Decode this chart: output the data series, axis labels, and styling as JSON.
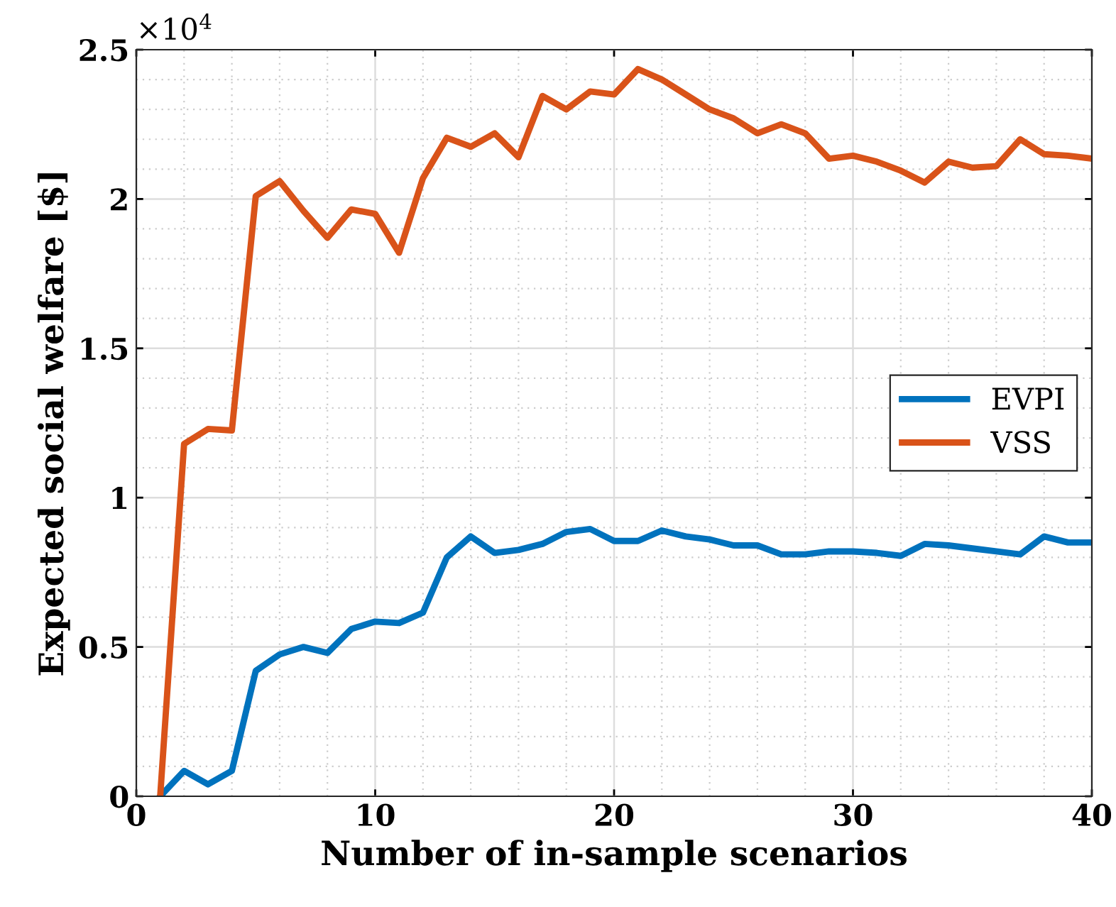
{
  "chart_data": {
    "type": "line",
    "xlabel": "Number of in-sample scenarios",
    "ylabel": "Expected social welfare [$]",
    "x": [
      1,
      2,
      3,
      4,
      5,
      6,
      7,
      8,
      9,
      10,
      11,
      12,
      13,
      14,
      15,
      16,
      17,
      18,
      19,
      20,
      21,
      22,
      23,
      24,
      25,
      26,
      27,
      28,
      29,
      30,
      31,
      32,
      33,
      34,
      35,
      36,
      37,
      38,
      39,
      40
    ],
    "series": [
      {
        "name": "EVPI",
        "color": "#0072bd",
        "values": [
          0,
          0.085,
          0.04,
          0.085,
          0.42,
          0.475,
          0.5,
          0.48,
          0.56,
          0.585,
          0.58,
          0.615,
          0.8,
          0.87,
          0.815,
          0.825,
          0.845,
          0.885,
          0.895,
          0.855,
          0.855,
          0.89,
          0.87,
          0.86,
          0.84,
          0.84,
          0.81,
          0.81,
          0.82,
          0.82,
          0.815,
          0.805,
          0.845,
          0.84,
          0.83,
          0.82,
          0.81,
          0.87,
          0.85,
          0.85
        ]
      },
      {
        "name": "VSS",
        "color": "#d95319",
        "values": [
          0,
          1.18,
          1.23,
          1.225,
          2.01,
          2.06,
          1.96,
          1.87,
          1.965,
          1.95,
          1.82,
          2.07,
          2.205,
          2.175,
          2.22,
          2.14,
          2.345,
          2.3,
          2.36,
          2.35,
          2.435,
          2.4,
          2.35,
          2.3,
          2.27,
          2.22,
          2.25,
          2.22,
          2.135,
          2.145,
          2.125,
          2.095,
          2.055,
          2.125,
          2.105,
          2.11,
          2.2,
          2.15,
          2.145,
          2.135
        ]
      }
    ],
    "xlim": [
      0,
      40
    ],
    "xticks": [
      0,
      10,
      20,
      30,
      40
    ],
    "ylim": [
      0,
      2.5
    ],
    "yticks": [
      0,
      0.5,
      1,
      1.5,
      2,
      2.5
    ],
    "annotations": [
      "×10$^{4}$"
    ],
    "grid": true,
    "legend": "center right",
    "marker": "none",
    "line_style": "solid"
  }
}
